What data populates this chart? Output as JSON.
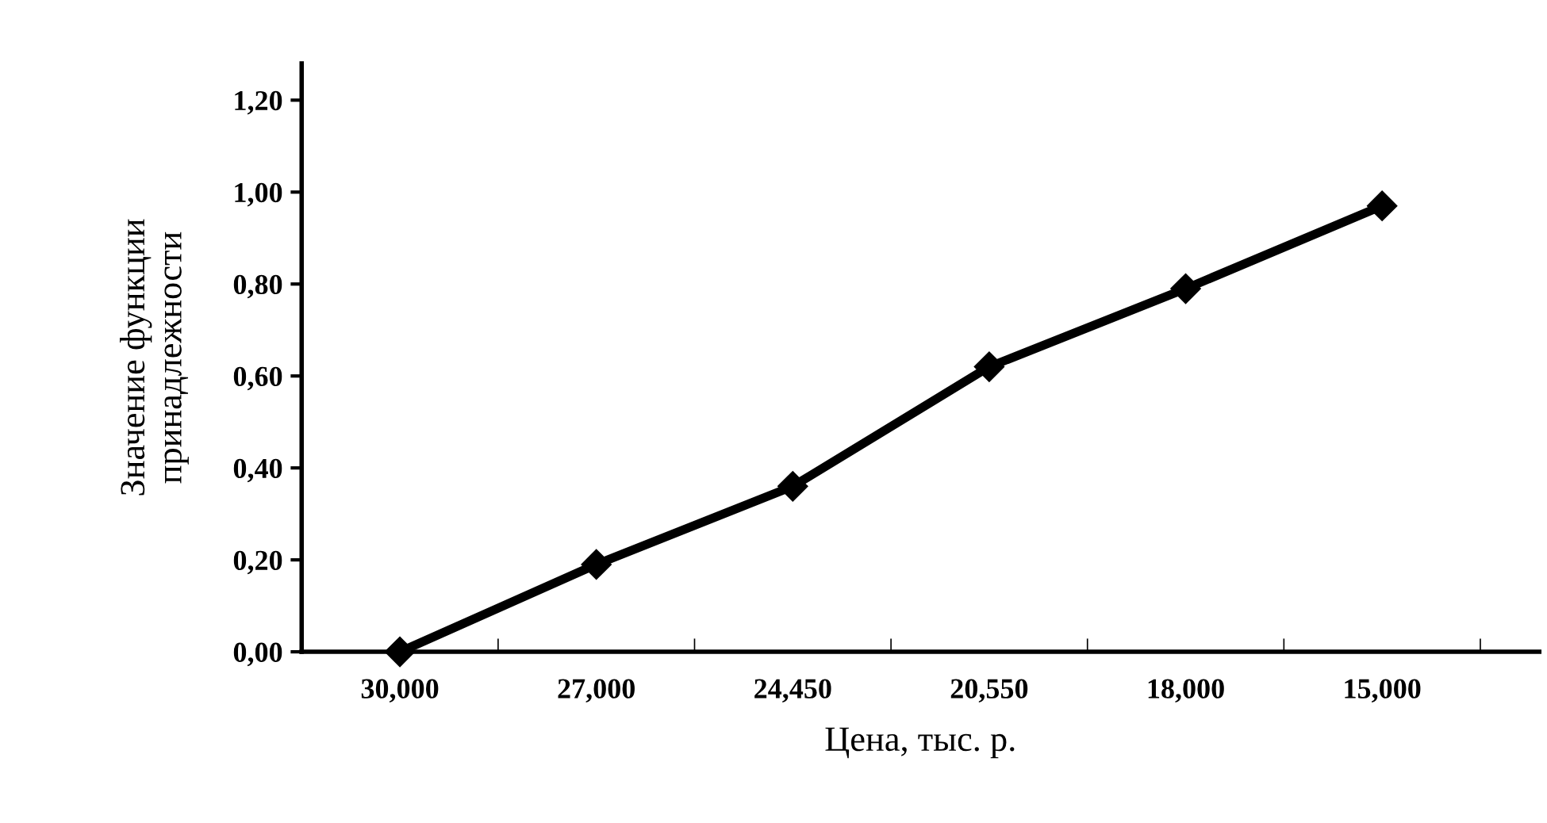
{
  "chart_data": {
    "type": "line",
    "xlabel": "Цена, тыс. р.",
    "ylabel": "Значение функции\nпринадлежности",
    "categories": [
      "30,000",
      "27,000",
      "24,450",
      "20,550",
      "18,000",
      "15,000"
    ],
    "series": [
      {
        "color": "#000000",
        "values": [
          0.0,
          0.19,
          0.36,
          0.62,
          0.79,
          0.97
        ]
      }
    ],
    "ylim": [
      0,
      1.28
    ],
    "yticks": [
      {
        "value": 0,
        "label": "0,00"
      },
      {
        "value": 0.2,
        "label": "0,20"
      },
      {
        "value": 0.4,
        "label": "0,40"
      },
      {
        "value": 0.6,
        "label": "0,60"
      },
      {
        "value": 0.8,
        "label": "0,80"
      },
      {
        "value": 1.0,
        "label": "1,00"
      },
      {
        "value": 1.2,
        "label": "1,20"
      }
    ],
    "marker": "diamond",
    "line_style": "solid",
    "grid": false,
    "legend": false
  }
}
